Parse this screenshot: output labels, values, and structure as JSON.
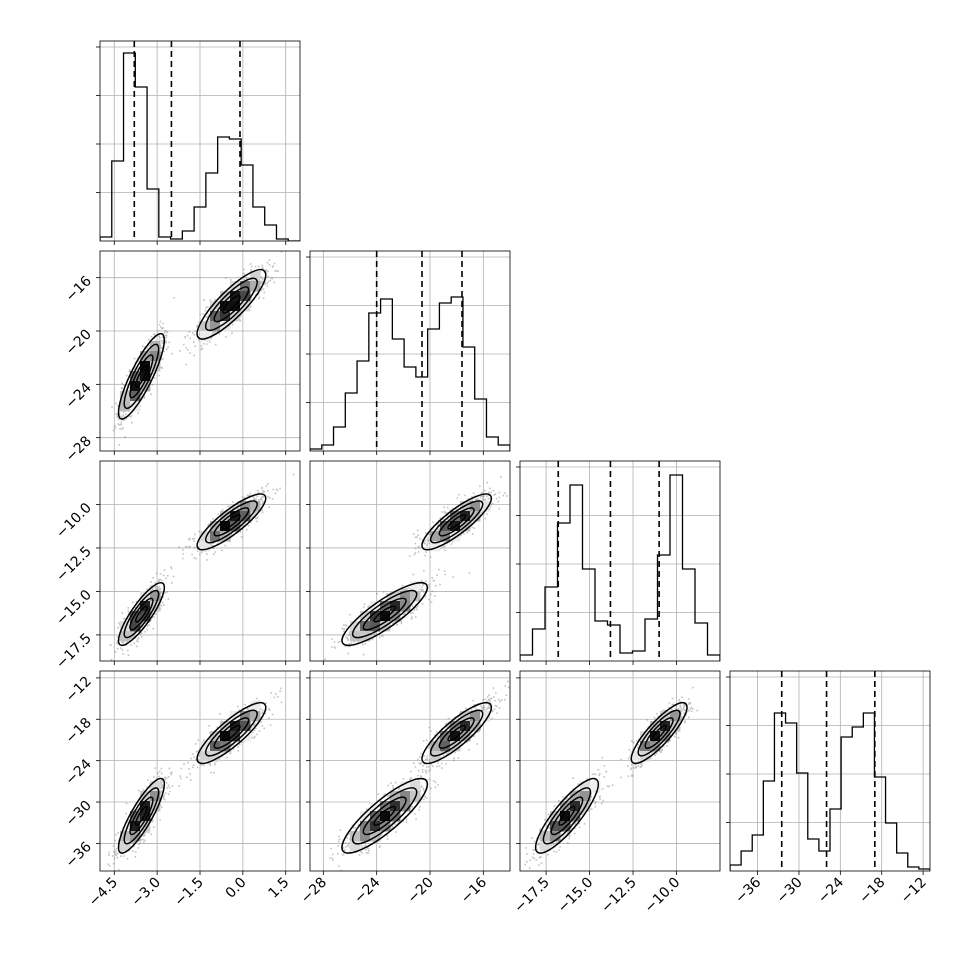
{
  "chart_data": {
    "type": "corner",
    "grid": true,
    "parameters": [
      {
        "range": [
          -5.0,
          2.0
        ],
        "ticks": [
          -4.5,
          -3.0,
          -1.5,
          0.0,
          1.5
        ],
        "tick_labels": [
          "−4.5",
          "−3.0",
          "−1.5",
          "0.0",
          "1.5"
        ],
        "quantiles": [
          -3.8,
          -2.5,
          -0.1
        ]
      },
      {
        "range": [
          -29,
          -14
        ],
        "ticks": [
          -28,
          -24,
          -20,
          -16
        ],
        "tick_labels": [
          "−28",
          "−24",
          "−20",
          "−16"
        ],
        "quantiles": [
          -24.0,
          -20.6,
          -17.6
        ]
      },
      {
        "range": [
          -19.0,
          -7.5
        ],
        "ticks": [
          -17.5,
          -15.0,
          -12.5,
          -10.0
        ],
        "tick_labels": [
          "−17.5",
          "−15.0",
          "−12.5",
          "−10.0"
        ],
        "quantiles": [
          -16.8,
          -13.8,
          -11.0
        ]
      },
      {
        "range": [
          -40,
          -11
        ],
        "ticks": [
          -36,
          -30,
          -24,
          -18,
          -12
        ],
        "tick_labels": [
          "−36",
          "−30",
          "−24",
          "−18",
          "−12"
        ],
        "quantiles": [
          -32.5,
          -26.0,
          -19.0
        ]
      }
    ],
    "modes": [
      {
        "weight": 0.5,
        "mean": [
          -3.55,
          -23.4,
          -16.3,
          -32.0
        ],
        "sd": [
          0.4,
          1.6,
          0.9,
          2.7
        ]
      },
      {
        "weight": 0.5,
        "mean": [
          -0.4,
          -18.0,
          -11.0,
          -20.0
        ],
        "sd": [
          0.6,
          1.3,
          0.8,
          2.2
        ]
      }
    ],
    "histograms": [
      [
        0.02,
        0.4,
        0.94,
        0.77,
        0.26,
        0.02,
        0.01,
        0.05,
        0.17,
        0.34,
        0.52,
        0.51,
        0.38,
        0.17,
        0.08,
        0.01,
        0.0
      ],
      [
        0.01,
        0.03,
        0.12,
        0.29,
        0.45,
        0.69,
        0.76,
        0.56,
        0.42,
        0.37,
        0.61,
        0.74,
        0.77,
        0.52,
        0.26,
        0.07,
        0.03
      ],
      [
        0.03,
        0.16,
        0.37,
        0.69,
        0.88,
        0.46,
        0.2,
        0.18,
        0.04,
        0.05,
        0.21,
        0.53,
        0.93,
        0.46,
        0.19,
        0.03
      ],
      [
        0.03,
        0.1,
        0.18,
        0.45,
        0.79,
        0.74,
        0.49,
        0.16,
        0.1,
        0.31,
        0.67,
        0.72,
        0.79,
        0.47,
        0.24,
        0.09,
        0.02,
        0.01
      ]
    ],
    "density_correlation": 0.85
  }
}
